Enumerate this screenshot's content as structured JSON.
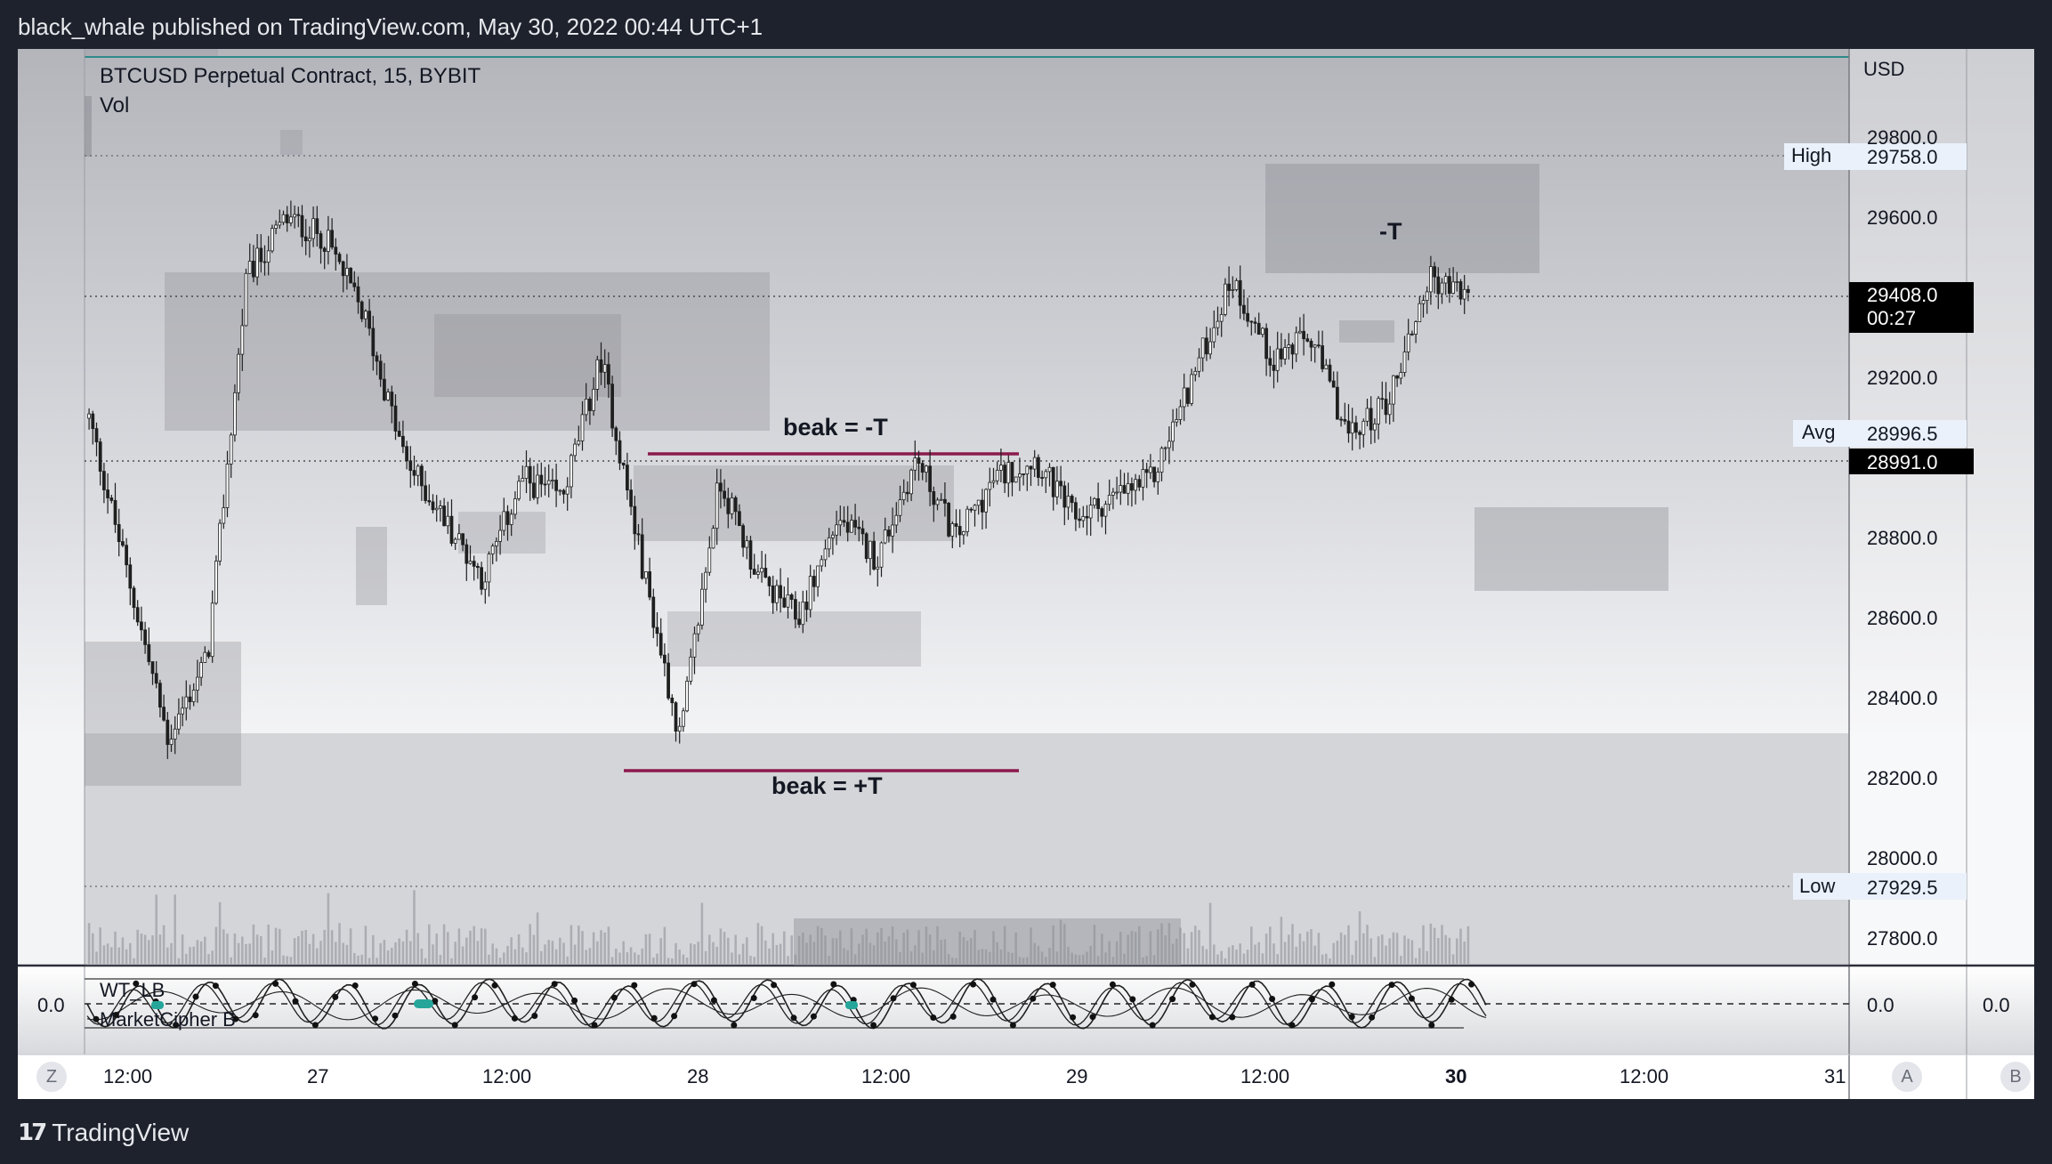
{
  "header": {
    "published_text": "black_whale published on TradingView.com, May 30, 2022 00:44 UTC+1"
  },
  "chart": {
    "symbol_title": "BTCUSD Perpetual Contract, 15, BYBIT",
    "volume_label": "Vol",
    "currency": "USD",
    "annotations": {
      "beak_minus_t": "beak = -T",
      "beak_plus_t": "beak = +T",
      "minus_t": "-T"
    },
    "labels": {
      "high_label": "High",
      "high_value": "29758.0",
      "avg_label": "Avg",
      "avg_value": "28996.5",
      "low_label": "Low",
      "low_value": "27929.5",
      "last_price": "29408.0",
      "countdown": "00:27",
      "current_line_value": "28991.0"
    }
  },
  "indicator": {
    "name_1": "WT_LB",
    "name_2": "MarketCipher B",
    "left_value": "0.0",
    "right_value_1": "0.0",
    "right_value_2": "0.0"
  },
  "time_axis": {
    "z_button": "Z",
    "a_button": "A",
    "b_button": "B"
  },
  "footer": {
    "brand": "TradingView",
    "logo_icon": "tradingview-logo-icon"
  },
  "colors": {
    "frame_background": "#f2f3f6",
    "page_background": "#1e222d",
    "zone_gray": "#8e9096",
    "trend_line": "#8b1a4d",
    "candle": "#1f1f1f",
    "last_price_bg": "#000000",
    "label_bg": "#e8f0fa"
  },
  "chart_data": {
    "type": "candlestick",
    "symbol": "BTCUSD Perpetual Contract",
    "interval": "15",
    "exchange": "BYBIT",
    "y_axis_ticks": [
      "29800.0",
      "29600.0",
      "29200.0",
      "28800.0",
      "28600.0",
      "28400.0",
      "28200.0",
      "28000.0",
      "27800.0"
    ],
    "x_axis_ticks": [
      "12:00",
      "27",
      "12:00",
      "28",
      "12:00",
      "29",
      "12:00",
      "30",
      "12:00",
      "31"
    ],
    "ylim": [
      27740,
      30000
    ],
    "high": 29758.0,
    "low": 27929.5,
    "avg": 28996.5,
    "last": 29408.0,
    "current_line": 28991.0,
    "price_path": [
      {
        "t": "26 08:00",
        "close": 29100
      },
      {
        "t": "26 10:00",
        "close": 28700
      },
      {
        "t": "26 12:00",
        "close": 28300
      },
      {
        "t": "26 13:00",
        "close": 28500
      },
      {
        "t": "26 15:00",
        "close": 29450
      },
      {
        "t": "26 18:00",
        "close": 29600
      },
      {
        "t": "26 21:00",
        "close": 29550
      },
      {
        "t": "27 00:00",
        "close": 29350
      },
      {
        "t": "27 03:00",
        "close": 29000
      },
      {
        "t": "27 06:00",
        "close": 28850
      },
      {
        "t": "27 09:00",
        "close": 28700
      },
      {
        "t": "27 12:00",
        "close": 28950
      },
      {
        "t": "27 15:00",
        "close": 28900
      },
      {
        "t": "27 18:00",
        "close": 29250
      },
      {
        "t": "27 21:00",
        "close": 28750
      },
      {
        "t": "28 00:00",
        "close": 28300
      },
      {
        "t": "28 01:00",
        "close": 28950
      },
      {
        "t": "28 03:00",
        "close": 28700
      },
      {
        "t": "28 05:00",
        "close": 28600
      },
      {
        "t": "28 08:00",
        "close": 28850
      },
      {
        "t": "28 11:00",
        "close": 28750
      },
      {
        "t": "28 13:00",
        "close": 29000
      },
      {
        "t": "28 16:00",
        "close": 28800
      },
      {
        "t": "28 19:00",
        "close": 28950
      },
      {
        "t": "29 00:00",
        "close": 29000
      },
      {
        "t": "29 03:00",
        "close": 28850
      },
      {
        "t": "29 06:00",
        "close": 28900
      },
      {
        "t": "29 09:00",
        "close": 28950
      },
      {
        "t": "29 12:00",
        "close": 29200
      },
      {
        "t": "29 14:00",
        "close": 29450
      },
      {
        "t": "29 16:00",
        "close": 29250
      },
      {
        "t": "29 18:00",
        "close": 29300
      },
      {
        "t": "29 20:00",
        "close": 29050
      },
      {
        "t": "29 22:00",
        "close": 29150
      },
      {
        "t": "29 23:00",
        "close": 29450
      },
      {
        "t": "30 00:44",
        "close": 29408
      }
    ]
  }
}
